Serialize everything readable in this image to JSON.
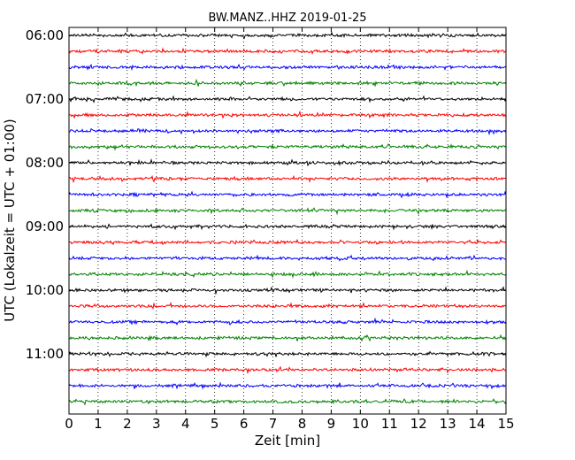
{
  "chart_data": {
    "type": "line",
    "title": "BW.MANZ..HHZ 2019-01-25",
    "xlabel": "Zeit  [min]",
    "ylabel": "UTC (Lokalzeit = UTC + 01:00)",
    "xlim": [
      0,
      15
    ],
    "xticks": [
      "0",
      "1",
      "2",
      "3",
      "4",
      "5",
      "6",
      "7",
      "8",
      "9",
      "10",
      "11",
      "12",
      "13",
      "14",
      "15"
    ],
    "yticks": [
      "06:00",
      "07:00",
      "08:00",
      "09:00",
      "10:00",
      "11:00"
    ],
    "trace_colors": [
      "#000000",
      "#ff0000",
      "#0000ff",
      "#008000"
    ],
    "trace_count": 24,
    "minutes_per_trace": 15,
    "start_time": "06:00",
    "grid": "dotted vertical at each minute"
  }
}
